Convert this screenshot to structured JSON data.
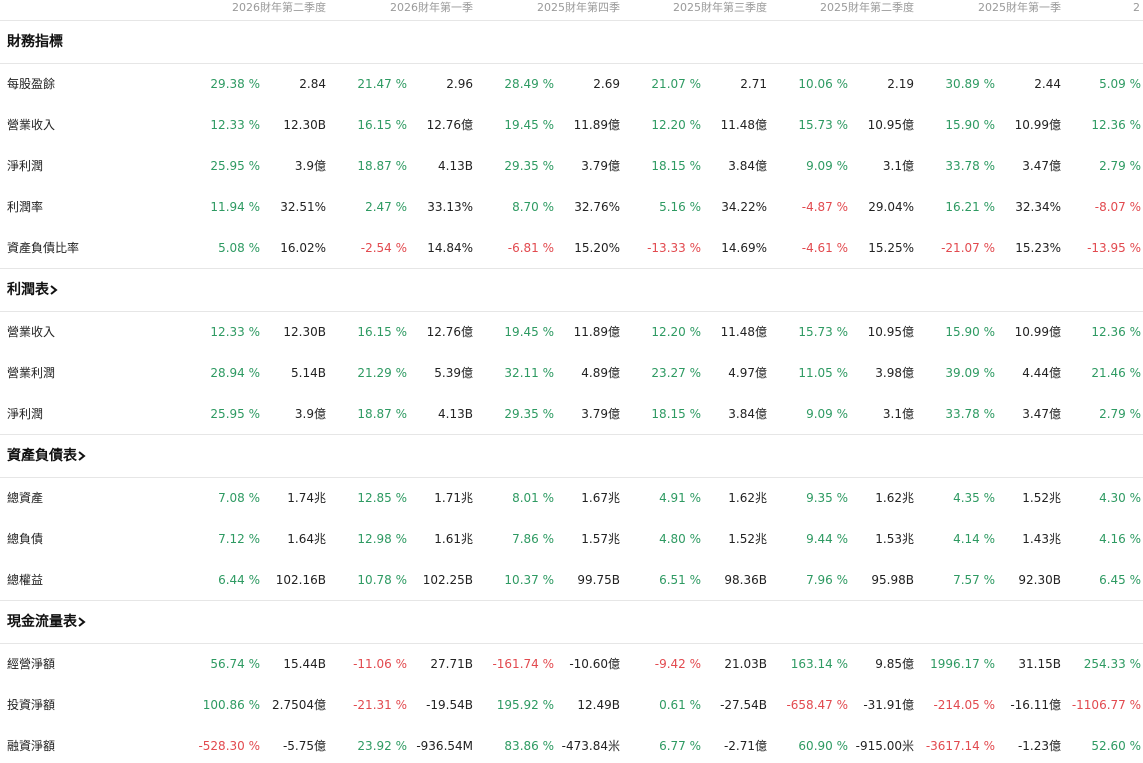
{
  "header": {
    "columns": [
      "2026財年第二季度",
      "2026財年第一季",
      "2025財年第四季",
      "2025財年第三季度",
      "2025財年第二季度",
      "2025財年第一季",
      "2"
    ]
  },
  "sections": [
    {
      "title": "財務指標",
      "link": false,
      "rows": [
        {
          "label": "每股盈餘",
          "cells": [
            [
              "29.38 %",
              "2.84"
            ],
            [
              "21.47 %",
              "2.96"
            ],
            [
              "28.49 %",
              "2.69"
            ],
            [
              "21.07 %",
              "2.71"
            ],
            [
              "10.06 %",
              "2.19"
            ],
            [
              "30.89 %",
              "2.44"
            ],
            [
              "5.09 %"
            ]
          ]
        },
        {
          "label": "營業收入",
          "cells": [
            [
              "12.33 %",
              "12.30B"
            ],
            [
              "16.15 %",
              "12.76億"
            ],
            [
              "19.45 %",
              "11.89億"
            ],
            [
              "12.20 %",
              "11.48億"
            ],
            [
              "15.73 %",
              "10.95億"
            ],
            [
              "15.90 %",
              "10.99億"
            ],
            [
              "12.36 %"
            ]
          ]
        },
        {
          "label": "淨利潤",
          "cells": [
            [
              "25.95 %",
              "3.9億"
            ],
            [
              "18.87 %",
              "4.13B"
            ],
            [
              "29.35 %",
              "3.79億"
            ],
            [
              "18.15 %",
              "3.84億"
            ],
            [
              "9.09 %",
              "3.1億"
            ],
            [
              "33.78 %",
              "3.47億"
            ],
            [
              "2.79 %"
            ]
          ]
        },
        {
          "label": "利潤率",
          "cells": [
            [
              "11.94 %",
              "32.51%"
            ],
            [
              "2.47 %",
              "33.13%"
            ],
            [
              "8.70 %",
              "32.76%"
            ],
            [
              "5.16 %",
              "34.22%"
            ],
            [
              "-4.87 %",
              "29.04%"
            ],
            [
              "16.21 %",
              "32.34%"
            ],
            [
              "-8.07 %"
            ]
          ]
        },
        {
          "label": "資產負債比率",
          "cells": [
            [
              "5.08 %",
              "16.02%"
            ],
            [
              "-2.54 %",
              "14.84%"
            ],
            [
              "-6.81 %",
              "15.20%"
            ],
            [
              "-13.33 %",
              "14.69%"
            ],
            [
              "-4.61 %",
              "15.25%"
            ],
            [
              "-21.07 %",
              "15.23%"
            ],
            [
              "-13.95 %"
            ]
          ]
        }
      ]
    },
    {
      "title": "利潤表",
      "link": true,
      "rows": [
        {
          "label": "營業收入",
          "cells": [
            [
              "12.33 %",
              "12.30B"
            ],
            [
              "16.15 %",
              "12.76億"
            ],
            [
              "19.45 %",
              "11.89億"
            ],
            [
              "12.20 %",
              "11.48億"
            ],
            [
              "15.73 %",
              "10.95億"
            ],
            [
              "15.90 %",
              "10.99億"
            ],
            [
              "12.36 %"
            ]
          ]
        },
        {
          "label": "營業利潤",
          "cells": [
            [
              "28.94 %",
              "5.14B"
            ],
            [
              "21.29 %",
              "5.39億"
            ],
            [
              "32.11 %",
              "4.89億"
            ],
            [
              "23.27 %",
              "4.97億"
            ],
            [
              "11.05 %",
              "3.98億"
            ],
            [
              "39.09 %",
              "4.44億"
            ],
            [
              "21.46 %"
            ]
          ]
        },
        {
          "label": "淨利潤",
          "cells": [
            [
              "25.95 %",
              "3.9億"
            ],
            [
              "18.87 %",
              "4.13B"
            ],
            [
              "29.35 %",
              "3.79億"
            ],
            [
              "18.15 %",
              "3.84億"
            ],
            [
              "9.09 %",
              "3.1億"
            ],
            [
              "33.78 %",
              "3.47億"
            ],
            [
              "2.79 %"
            ]
          ]
        }
      ]
    },
    {
      "title": "資產負債表",
      "link": true,
      "rows": [
        {
          "label": "總資產",
          "cells": [
            [
              "7.08 %",
              "1.74兆"
            ],
            [
              "12.85 %",
              "1.71兆"
            ],
            [
              "8.01 %",
              "1.67兆"
            ],
            [
              "4.91 %",
              "1.62兆"
            ],
            [
              "9.35 %",
              "1.62兆"
            ],
            [
              "4.35 %",
              "1.52兆"
            ],
            [
              "4.30 %"
            ]
          ]
        },
        {
          "label": "總負債",
          "cells": [
            [
              "7.12 %",
              "1.64兆"
            ],
            [
              "12.98 %",
              "1.61兆"
            ],
            [
              "7.86 %",
              "1.57兆"
            ],
            [
              "4.80 %",
              "1.52兆"
            ],
            [
              "9.44 %",
              "1.53兆"
            ],
            [
              "4.14 %",
              "1.43兆"
            ],
            [
              "4.16 %"
            ]
          ]
        },
        {
          "label": "總權益",
          "cells": [
            [
              "6.44 %",
              "102.16B"
            ],
            [
              "10.78 %",
              "102.25B"
            ],
            [
              "10.37 %",
              "99.75B"
            ],
            [
              "6.51 %",
              "98.36B"
            ],
            [
              "7.96 %",
              "95.98B"
            ],
            [
              "7.57 %",
              "92.30B"
            ],
            [
              "6.45 %"
            ]
          ]
        }
      ]
    },
    {
      "title": "現金流量表",
      "link": true,
      "rows": [
        {
          "label": "經營淨額",
          "cells": [
            [
              "56.74 %",
              "15.44B"
            ],
            [
              "-11.06 %",
              "27.71B"
            ],
            [
              "-161.74 %",
              "-10.60億"
            ],
            [
              "-9.42 %",
              "21.03B"
            ],
            [
              "163.14 %",
              "9.85億"
            ],
            [
              "1996.17 %",
              "31.15B"
            ],
            [
              "254.33 %"
            ]
          ]
        },
        {
          "label": "投資淨額",
          "cells": [
            [
              "100.86 %",
              "2.7504億"
            ],
            [
              "-21.31 %",
              "-19.54B"
            ],
            [
              "195.92 %",
              "12.49B"
            ],
            [
              "0.61 %",
              "-27.54B"
            ],
            [
              "-658.47 %",
              "-31.91億"
            ],
            [
              "-214.05 %",
              "-16.11億"
            ],
            [
              "-1106.77 %"
            ]
          ]
        },
        {
          "label": "融資淨額",
          "cells": [
            [
              "-528.30 %",
              "-5.75億"
            ],
            [
              "23.92 %",
              "-936.54M"
            ],
            [
              "83.86 %",
              "-473.84米"
            ],
            [
              "6.77 %",
              "-2.71億"
            ],
            [
              "60.90 %",
              "-915.00米"
            ],
            [
              "-3617.14 %",
              "-1.23億"
            ],
            [
              "52.60 %"
            ]
          ]
        }
      ]
    }
  ]
}
